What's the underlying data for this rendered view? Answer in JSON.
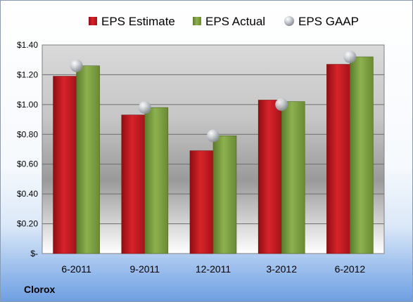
{
  "chart_data": {
    "type": "bar",
    "company": "Clorox",
    "categories": [
      "6-2011",
      "9-2011",
      "12-2011",
      "3-2012",
      "6-2012"
    ],
    "series": [
      {
        "name": "EPS Estimate",
        "kind": "bar",
        "color": "#c0181d",
        "values": [
          1.19,
          0.93,
          0.69,
          1.03,
          1.27
        ]
      },
      {
        "name": "EPS Actual",
        "kind": "bar",
        "color": "#7fa243",
        "values": [
          1.26,
          0.98,
          0.79,
          1.02,
          1.32
        ]
      },
      {
        "name": "EPS GAAP",
        "kind": "marker",
        "color": "#b9bcc4",
        "values": [
          1.26,
          0.98,
          0.79,
          1.0,
          1.32
        ]
      }
    ],
    "ylim": [
      0,
      1.4
    ],
    "yticks": [
      {
        "value": 0,
        "label": "$-"
      },
      {
        "value": 0.2,
        "label": "$0.20"
      },
      {
        "value": 0.4,
        "label": "$0.40"
      },
      {
        "value": 0.6,
        "label": "$0.60"
      },
      {
        "value": 0.8,
        "label": "$0.80"
      },
      {
        "value": 1.0,
        "label": "$1.00"
      },
      {
        "value": 1.2,
        "label": "$1.20"
      },
      {
        "value": 1.4,
        "label": "$1.40"
      }
    ],
    "grid": true,
    "legend_position": "top"
  }
}
